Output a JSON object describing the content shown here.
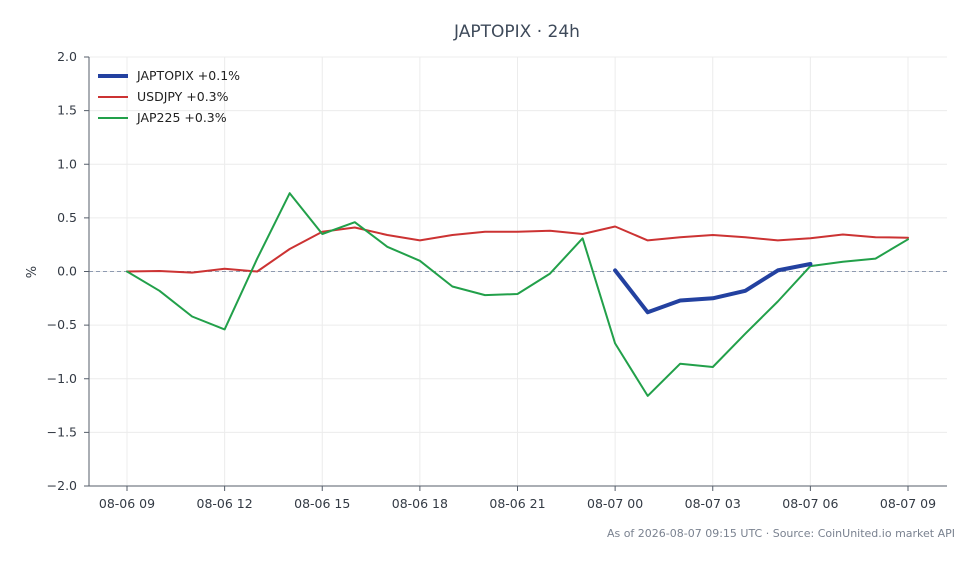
{
  "chart_data": {
    "type": "line",
    "title": "JAPTOPIX · 24h",
    "xlabel": "",
    "ylabel": "%",
    "x_ticks": [
      "08-06 09",
      "08-06 12",
      "08-06 15",
      "08-06 18",
      "08-06 21",
      "08-07 00",
      "08-07 03",
      "08-07 06",
      "08-07 09"
    ],
    "xlim_hours": [
      0,
      24
    ],
    "y_ticks": [
      "2.0",
      "1.5",
      "1.0",
      "0.5",
      "0.0",
      "−0.5",
      "−1.0",
      "−1.5",
      "−2.0"
    ],
    "ylim": [
      -2.0,
      2.0
    ],
    "grid": true,
    "zero_line": true,
    "legend_position": "top-left",
    "series": [
      {
        "name": "JAPTOPIX +0.1%",
        "color": "#2341a0",
        "width": 4,
        "x": [
          15,
          16,
          17,
          18,
          19,
          20,
          21
        ],
        "y": [
          0.01,
          -0.38,
          -0.27,
          -0.25,
          -0.18,
          0.01,
          0.07
        ]
      },
      {
        "name": "USDJPY +0.3%",
        "color": "#cc3333",
        "width": 2,
        "x": [
          0,
          1,
          2,
          3,
          4,
          5,
          6,
          7,
          8,
          9,
          10,
          11,
          12,
          13,
          14,
          15,
          16,
          17,
          18,
          19,
          20,
          21,
          22,
          23,
          24
        ],
        "y": [
          0.0,
          0.005,
          -0.01,
          0.025,
          0.0,
          0.21,
          0.37,
          0.41,
          0.34,
          0.29,
          0.34,
          0.37,
          0.37,
          0.38,
          0.35,
          0.42,
          0.29,
          0.32,
          0.34,
          0.32,
          0.29,
          0.31,
          0.345,
          0.32,
          0.315
        ]
      },
      {
        "name": "JAP225 +0.3%",
        "color": "#22a04a",
        "width": 2,
        "x": [
          0,
          1,
          2,
          3,
          4,
          5,
          6,
          7,
          8,
          9,
          10,
          11,
          12,
          13,
          14,
          15,
          16,
          17,
          18,
          19,
          20,
          21,
          22,
          23,
          24
        ],
        "y": [
          0.0,
          -0.18,
          -0.42,
          -0.54,
          0.12,
          0.73,
          0.35,
          0.46,
          0.23,
          0.1,
          -0.14,
          -0.22,
          -0.21,
          -0.02,
          0.31,
          -0.67,
          -1.16,
          -0.86,
          -0.89,
          -0.58,
          -0.28,
          0.05,
          0.09,
          0.12,
          0.3
        ]
      }
    ]
  },
  "footer": {
    "note": "As of 2026-08-07 09:15 UTC · Source: CoinUnited.io market API"
  }
}
